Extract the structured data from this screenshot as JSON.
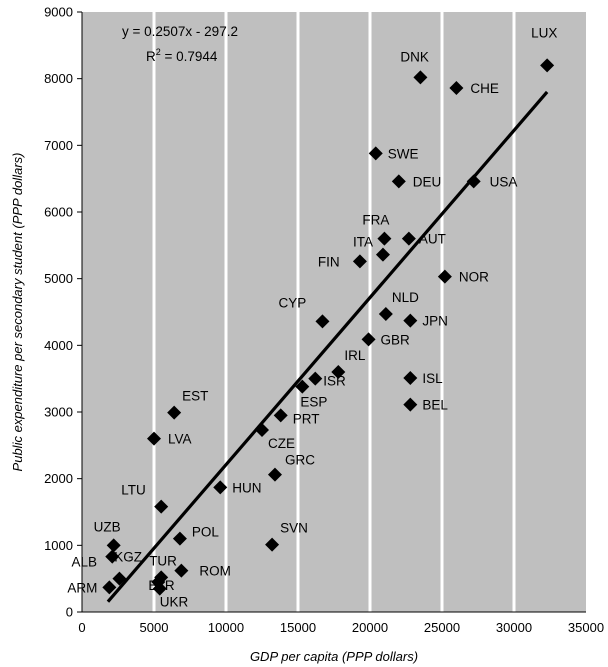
{
  "chart_data": {
    "type": "scatter",
    "xlabel": "GDP per capita (PPP dollars)",
    "ylabel": "Public expenditure per secondary student (PPP dollars)",
    "xlim": [
      0,
      35000
    ],
    "ylim": [
      0,
      9000
    ],
    "x_ticks": [
      0,
      5000,
      10000,
      15000,
      20000,
      25000,
      30000,
      35000
    ],
    "y_ticks": [
      0,
      1000,
      2000,
      3000,
      4000,
      5000,
      6000,
      7000,
      8000,
      9000
    ],
    "x_tick_labels": [
      "0",
      "5000",
      "10000",
      "15000",
      "20000",
      "25000",
      "30000",
      "35000"
    ],
    "y_tick_labels": [
      "0",
      "1000",
      "2000",
      "3000",
      "4000",
      "5000",
      "6000",
      "7000",
      "8000",
      "9000"
    ],
    "grid": "vertical white lines over grey plot area",
    "marker": "diamond",
    "trendline": {
      "slope": 0.2507,
      "intercept": -297.2,
      "equation": "y = 0.2507x - 297.2",
      "r2_prefix": "R",
      "r2_sup": "2",
      "r2_suffix": " = 0.7944"
    },
    "points": [
      {
        "label": "LUX",
        "x": 32300,
        "y": 8200
      },
      {
        "label": "DNK",
        "x": 23500,
        "y": 8020
      },
      {
        "label": "CHE",
        "x": 26000,
        "y": 7860
      },
      {
        "label": "SWE",
        "x": 20400,
        "y": 6880
      },
      {
        "label": "DEU",
        "x": 22000,
        "y": 6460
      },
      {
        "label": "USA",
        "x": 27200,
        "y": 6460
      },
      {
        "label": "FRA",
        "x": 21000,
        "y": 5600
      },
      {
        "label": "AUT",
        "x": 22700,
        "y": 5600
      },
      {
        "label": "ITA",
        "x": 20900,
        "y": 5360
      },
      {
        "label": "FIN",
        "x": 19300,
        "y": 5260
      },
      {
        "label": "NOR",
        "x": 25200,
        "y": 5030
      },
      {
        "label": "CYP",
        "x": 16700,
        "y": 4360
      },
      {
        "label": "NLD",
        "x": 21100,
        "y": 4470
      },
      {
        "label": "JPN",
        "x": 22800,
        "y": 4370
      },
      {
        "label": "GBR",
        "x": 19900,
        "y": 4090
      },
      {
        "label": "IRL",
        "x": 17800,
        "y": 3600
      },
      {
        "label": "ISR",
        "x": 16200,
        "y": 3500
      },
      {
        "label": "ESP",
        "x": 15300,
        "y": 3380
      },
      {
        "label": "ISL",
        "x": 22800,
        "y": 3510
      },
      {
        "label": "BEL",
        "x": 22800,
        "y": 3110
      },
      {
        "label": "EST",
        "x": 6400,
        "y": 2990
      },
      {
        "label": "PRT",
        "x": 13800,
        "y": 2950
      },
      {
        "label": "CZE",
        "x": 12500,
        "y": 2730
      },
      {
        "label": "LVA",
        "x": 5000,
        "y": 2600
      },
      {
        "label": "GRC",
        "x": 13400,
        "y": 2060
      },
      {
        "label": "HUN",
        "x": 9600,
        "y": 1870
      },
      {
        "label": "LTU",
        "x": 5500,
        "y": 1580
      },
      {
        "label": "POL",
        "x": 6800,
        "y": 1100
      },
      {
        "label": "SVN",
        "x": 13200,
        "y": 1010
      },
      {
        "label": "UZB",
        "x": 2200,
        "y": 1000
      },
      {
        "label": "KGZ",
        "x": 2100,
        "y": 830
      },
      {
        "label": "ROM",
        "x": 6900,
        "y": 620
      },
      {
        "label": "TUR",
        "x": 5500,
        "y": 520
      },
      {
        "label": "ALB",
        "x": 2600,
        "y": 500
      },
      {
        "label": "BLR",
        "x": 5300,
        "y": 450
      },
      {
        "label": "ARM",
        "x": 1900,
        "y": 370
      },
      {
        "label": "UKR",
        "x": 5400,
        "y": 350
      }
    ]
  }
}
